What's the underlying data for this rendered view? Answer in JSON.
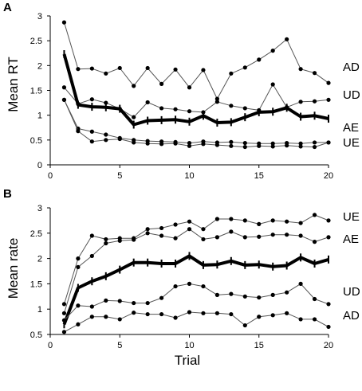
{
  "chart_data": [
    {
      "panel": "A",
      "type": "line",
      "ylabel": "Mean RT",
      "xlim": [
        0,
        20
      ],
      "ylim": [
        0,
        3
      ],
      "xticks": [
        "0",
        "5",
        "10",
        "15",
        "20"
      ],
      "yticks": [
        "0",
        "0.5",
        "1",
        "1.5",
        "2",
        "2.5",
        "3"
      ],
      "grid": false,
      "series": [
        {
          "name": "AD",
          "style": "thin",
          "x": [
            1,
            2,
            3,
            4,
            5,
            6,
            7,
            8,
            9,
            10,
            11,
            12,
            13,
            14,
            15,
            16,
            17,
            18,
            19,
            20
          ],
          "values": [
            2.87,
            1.93,
            1.94,
            1.84,
            1.95,
            1.59,
            1.95,
            1.63,
            1.92,
            1.56,
            1.91,
            1.33,
            1.84,
            1.96,
            2.12,
            2.3,
            2.53,
            1.93,
            1.85,
            1.65
          ]
        },
        {
          "name": "UD",
          "style": "thin",
          "x": [
            1,
            2,
            3,
            4,
            5,
            6,
            7,
            8,
            9,
            10,
            11,
            12,
            13,
            14,
            15,
            16,
            17,
            18,
            19,
            20
          ],
          "values": [
            1.56,
            1.23,
            1.32,
            1.25,
            1.13,
            0.96,
            1.26,
            1.14,
            1.12,
            1.08,
            1.06,
            1.27,
            1.19,
            1.14,
            1.1,
            1.62,
            1.16,
            1.27,
            1.28,
            1.31
          ]
        },
        {
          "name": "",
          "style": "thick",
          "x": [
            1,
            2,
            3,
            4,
            5,
            6,
            7,
            8,
            9,
            10,
            11,
            12,
            13,
            14,
            15,
            16,
            17,
            18,
            19,
            20
          ],
          "values": [
            2.23,
            1.21,
            1.17,
            1.16,
            1.13,
            0.81,
            0.89,
            0.9,
            0.91,
            0.87,
            0.99,
            0.85,
            0.86,
            0.96,
            1.06,
            1.07,
            1.15,
            0.97,
            0.99,
            0.93
          ]
        },
        {
          "name": "AE",
          "style": "thin",
          "x": [
            1,
            2,
            3,
            4,
            5,
            6,
            7,
            8,
            9,
            10,
            11,
            12,
            13,
            14,
            15,
            16,
            17,
            18,
            19,
            20
          ],
          "values": [
            1.31,
            0.73,
            0.67,
            0.61,
            0.54,
            0.5,
            0.48,
            0.47,
            0.46,
            0.44,
            0.47,
            0.45,
            0.46,
            0.44,
            0.43,
            0.43,
            0.44,
            0.43,
            0.45,
            0.45
          ]
        },
        {
          "name": "UE",
          "style": "thin",
          "x": [
            1,
            2,
            3,
            4,
            5,
            6,
            7,
            8,
            9,
            10,
            11,
            12,
            13,
            14,
            15,
            16,
            17,
            18,
            19,
            20
          ],
          "values": [
            1.31,
            0.68,
            0.47,
            0.5,
            0.52,
            0.45,
            0.43,
            0.42,
            0.43,
            0.38,
            0.42,
            0.4,
            0.38,
            0.36,
            0.38,
            0.37,
            0.39,
            0.37,
            0.36,
            0.45
          ]
        }
      ]
    },
    {
      "panel": "B",
      "type": "line",
      "ylabel": "Mean rate",
      "xlabel": "Trial",
      "xlim": [
        0,
        20
      ],
      "ylim": [
        0.5,
        3
      ],
      "xticks": [
        "0",
        "5",
        "10",
        "15",
        "20"
      ],
      "yticks": [
        "0.5",
        "1",
        "1.5",
        "2",
        "2.5",
        "3"
      ],
      "grid": false,
      "series": [
        {
          "name": "UE",
          "style": "thin",
          "x": [
            1,
            2,
            3,
            4,
            5,
            6,
            7,
            8,
            9,
            10,
            11,
            12,
            13,
            14,
            15,
            16,
            17,
            18,
            19,
            20
          ],
          "values": [
            1.1,
            2.0,
            2.45,
            2.38,
            2.4,
            2.4,
            2.58,
            2.6,
            2.67,
            2.73,
            2.58,
            2.78,
            2.78,
            2.75,
            2.68,
            2.75,
            2.73,
            2.7,
            2.86,
            2.75
          ]
        },
        {
          "name": "AE",
          "style": "thin",
          "x": [
            1,
            2,
            3,
            4,
            5,
            6,
            7,
            8,
            9,
            10,
            11,
            12,
            13,
            14,
            15,
            16,
            17,
            18,
            19,
            20
          ],
          "values": [
            0.92,
            1.83,
            2.05,
            2.3,
            2.35,
            2.37,
            2.5,
            2.45,
            2.4,
            2.58,
            2.38,
            2.42,
            2.53,
            2.42,
            2.43,
            2.47,
            2.47,
            2.45,
            2.33,
            2.42
          ]
        },
        {
          "name": "",
          "style": "thick",
          "x": [
            1,
            2,
            3,
            4,
            5,
            6,
            7,
            8,
            9,
            10,
            11,
            12,
            13,
            14,
            15,
            16,
            17,
            18,
            19,
            20
          ],
          "values": [
            0.7,
            1.42,
            1.55,
            1.65,
            1.78,
            1.92,
            1.92,
            1.9,
            1.9,
            2.05,
            1.87,
            1.88,
            1.95,
            1.87,
            1.88,
            1.84,
            1.86,
            2.02,
            1.9,
            1.98
          ]
        },
        {
          "name": "UD",
          "style": "thin",
          "x": [
            1,
            2,
            3,
            4,
            5,
            6,
            7,
            8,
            9,
            10,
            11,
            12,
            13,
            14,
            15,
            16,
            17,
            18,
            19,
            20
          ],
          "values": [
            0.78,
            1.07,
            1.05,
            1.17,
            1.16,
            1.12,
            1.12,
            1.22,
            1.45,
            1.5,
            1.45,
            1.28,
            1.3,
            1.25,
            1.23,
            1.28,
            1.33,
            1.5,
            1.2,
            1.1
          ]
        },
        {
          "name": "AD",
          "style": "thin",
          "x": [
            1,
            2,
            3,
            4,
            5,
            6,
            7,
            8,
            9,
            10,
            11,
            12,
            13,
            14,
            15,
            16,
            17,
            18,
            19,
            20
          ],
          "values": [
            0.55,
            0.7,
            0.85,
            0.85,
            0.8,
            0.93,
            0.9,
            0.9,
            0.83,
            0.94,
            0.92,
            0.92,
            0.9,
            0.68,
            0.85,
            0.88,
            0.92,
            0.8,
            0.8,
            0.65
          ]
        }
      ]
    }
  ]
}
